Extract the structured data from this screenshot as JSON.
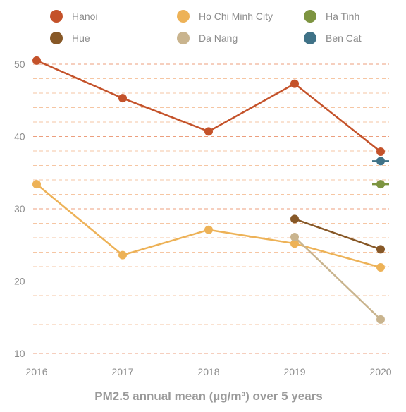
{
  "chart_data": {
    "type": "line",
    "title": "",
    "xlabel": "PM2.5 annual mean (µg/m³) over 5 years",
    "ylabel": "",
    "x": [
      2016,
      2017,
      2018,
      2019,
      2020
    ],
    "x_ticks": [
      "2016",
      "2017",
      "2018",
      "2019",
      "2020"
    ],
    "y_ticks": [
      "10",
      "20",
      "30",
      "40",
      "50"
    ],
    "ylim": [
      10,
      50
    ],
    "grid": "horizontal dashed",
    "legend_position": "top",
    "series": [
      {
        "name": "Hanoi",
        "color": "#c4522a",
        "values": [
          50.5,
          45.3,
          40.7,
          47.3,
          37.9
        ]
      },
      {
        "name": "Ho Chi Minh City",
        "color": "#edb257",
        "values": [
          33.4,
          23.6,
          27.1,
          25.2,
          21.9
        ]
      },
      {
        "name": "Ha Tinh",
        "color": "#7d9440",
        "values": [
          null,
          null,
          null,
          null,
          33.4
        ]
      },
      {
        "name": "Hue",
        "color": "#875827",
        "values": [
          null,
          null,
          null,
          28.6,
          24.4
        ]
      },
      {
        "name": "Da Nang",
        "color": "#c9b48e",
        "values": [
          null,
          null,
          null,
          26.1,
          14.7
        ]
      },
      {
        "name": "Ben Cat",
        "color": "#3f7287",
        "values": [
          null,
          null,
          null,
          null,
          36.6
        ]
      }
    ]
  }
}
